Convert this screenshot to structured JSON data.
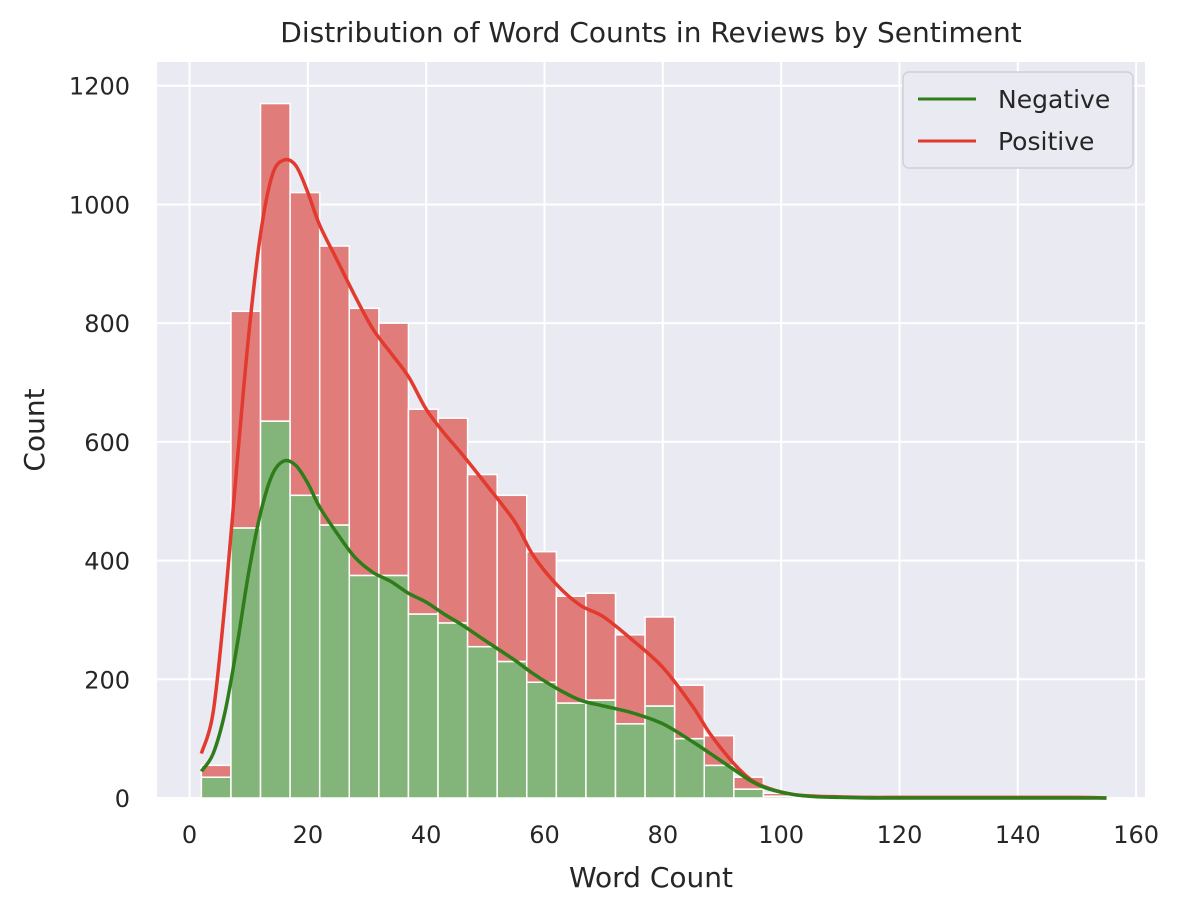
{
  "chart_data": {
    "type": "bar",
    "stacked": true,
    "title": "Distribution of Word Counts in Reviews by Sentiment",
    "xlabel": "Word Count",
    "ylabel": "Count",
    "xlim": [
      -5.5,
      161.5
    ],
    "ylim": [
      0,
      1240
    ],
    "xticks": [
      0,
      20,
      40,
      60,
      80,
      100,
      120,
      140,
      160
    ],
    "yticks": [
      0,
      200,
      400,
      600,
      800,
      1000,
      1200
    ],
    "grid": true,
    "legend_position": "top-right",
    "bin_edges": [
      2,
      7,
      12,
      17,
      22,
      27,
      32,
      37,
      42,
      47,
      52,
      57,
      62,
      67,
      72,
      77,
      82,
      87,
      92,
      97,
      102,
      107,
      112,
      117,
      122,
      127,
      132,
      137,
      142,
      147,
      152,
      155
    ],
    "series": [
      {
        "name": "Negative",
        "bar_color": "#83b47a",
        "line_color": "#2e7d1a",
        "values": [
          35,
          455,
          635,
          510,
          460,
          375,
          375,
          310,
          295,
          255,
          230,
          195,
          160,
          165,
          125,
          155,
          100,
          55,
          15,
          3,
          1,
          0,
          0,
          0,
          0,
          0,
          0,
          0,
          0,
          0,
          0
        ],
        "kde": {
          "x": [
            2,
            4,
            6,
            8,
            10,
            12,
            14,
            16,
            18,
            20,
            22,
            25,
            28,
            31,
            34,
            37,
            40,
            43,
            46,
            50,
            55,
            58,
            62,
            66,
            70,
            75,
            80,
            85,
            88,
            92,
            95,
            98,
            102,
            106,
            110,
            115,
            120,
            130,
            140,
            150,
            155
          ],
          "y": [
            45,
            75,
            145,
            255,
            380,
            480,
            545,
            568,
            560,
            530,
            490,
            445,
            405,
            380,
            365,
            345,
            330,
            310,
            292,
            265,
            232,
            210,
            185,
            165,
            155,
            143,
            125,
            95,
            75,
            48,
            28,
            15,
            6,
            2,
            1,
            0,
            0,
            0,
            0,
            0,
            0
          ]
        }
      },
      {
        "name": "Positive",
        "bar_color": "#e07d7b",
        "line_color": "#e23a2e",
        "values": [
          20,
          365,
          535,
          510,
          470,
          450,
          425,
          345,
          345,
          290,
          280,
          220,
          180,
          180,
          150,
          150,
          90,
          50,
          20,
          5,
          2,
          1,
          1,
          1,
          1,
          1,
          1,
          1,
          1,
          1,
          1
        ],
        "kde": {
          "x": [
            2,
            4,
            6,
            8,
            10,
            12,
            14,
            16,
            18,
            20,
            22,
            25,
            28,
            31,
            34,
            37,
            40,
            43,
            46,
            50,
            55,
            58,
            62,
            66,
            70,
            75,
            80,
            85,
            88,
            92,
            95,
            98,
            102,
            106,
            110,
            115,
            120,
            130,
            140,
            150,
            155
          ],
          "y": [
            75,
            145,
            330,
            560,
            780,
            950,
            1050,
            1075,
            1065,
            1020,
            965,
            905,
            845,
            790,
            750,
            710,
            655,
            615,
            580,
            530,
            465,
            410,
            360,
            325,
            305,
            265,
            220,
            155,
            108,
            58,
            30,
            16,
            6,
            3,
            2,
            1,
            1,
            1,
            1,
            1,
            0
          ]
        }
      }
    ]
  }
}
